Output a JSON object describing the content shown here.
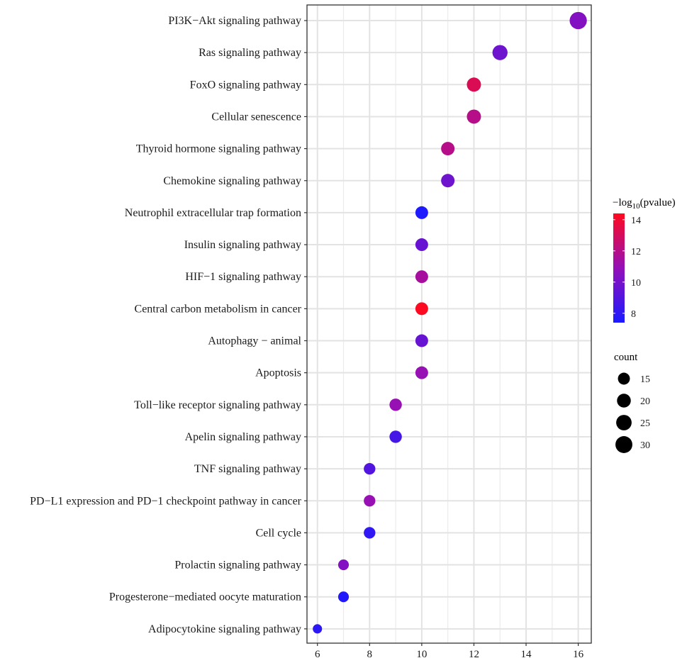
{
  "chart_data": {
    "type": "scatter",
    "title": "",
    "xlabel": "",
    "ylabel": "",
    "xlim": [
      5.6,
      16.5
    ],
    "xticks": [
      6,
      8,
      10,
      12,
      14,
      16
    ],
    "xtick_labels": [
      "6",
      "8",
      "10",
      "12",
      "14",
      "16"
    ],
    "grid": true,
    "legend_position": "right",
    "categories": [
      "PI3K−Akt signaling pathway",
      "Ras signaling pathway",
      "FoxO signaling pathway",
      "Cellular senescence",
      "Thyroid hormone signaling pathway",
      "Chemokine signaling pathway",
      "Neutrophil extracellular trap formation",
      "Insulin signaling pathway",
      "HIF−1 signaling pathway",
      "Central carbon metabolism in cancer",
      "Autophagy − animal",
      "Apoptosis",
      "Toll−like receptor signaling pathway",
      "Apelin signaling pathway",
      "TNF signaling pathway",
      "PD−L1 expression and PD−1 checkpoint pathway in cancer",
      "Cell cycle",
      "Prolactin signaling pathway",
      "Progesterone−mediated oocyte maturation",
      "Adipocytokine signaling pathway"
    ],
    "x": [
      16,
      13,
      12,
      12,
      11,
      11,
      10,
      10,
      10,
      10,
      10,
      10,
      9,
      9,
      8,
      8,
      8,
      7,
      7,
      6
    ],
    "count": [
      31,
      24,
      21,
      21,
      19,
      19,
      17,
      17,
      17,
      17,
      17,
      17,
      16,
      16,
      14,
      14,
      14,
      12,
      12,
      9
    ],
    "neglog10_pvalue": [
      10.4,
      9.8,
      13.2,
      12.0,
      12.0,
      9.8,
      7.5,
      9.6,
      11.5,
      14.3,
      9.6,
      11.0,
      11.0,
      8.6,
      9.0,
      11.0,
      8.0,
      10.4,
      7.6,
      7.9
    ],
    "color_legend": {
      "title_prefix": "−log",
      "title_sub": "10",
      "title_suffix": "(pvalue)",
      "min": 7.4,
      "max": 14.4,
      "ticks": [
        8,
        10,
        12,
        14
      ],
      "tick_labels": [
        "8",
        "10",
        "12",
        "14"
      ],
      "low_color": "#1a1aff",
      "mid_color": "#9410b8",
      "high_color": "#ff0a1e"
    },
    "size_legend": {
      "title": "count",
      "values": [
        15,
        20,
        25,
        30
      ],
      "labels": [
        "15",
        "20",
        "25",
        "30"
      ]
    }
  }
}
